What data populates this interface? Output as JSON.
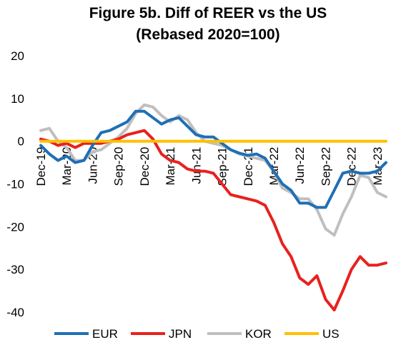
{
  "chart_data": {
    "type": "line",
    "title": "Figure 5b. Diff of REER vs the US",
    "subtitle": "(Rebased 2020=100)",
    "xlabel": "",
    "ylabel": "",
    "ylim": [
      -40,
      20
    ],
    "yticks": [
      20,
      10,
      0,
      -10,
      -20,
      -30,
      -40
    ],
    "grid": false,
    "legend_position": "bottom",
    "x": [
      "Dec-19",
      "Jan-20",
      "Feb-20",
      "Mar-20",
      "Apr-20",
      "May-20",
      "Jun-20",
      "Jul-20",
      "Aug-20",
      "Sep-20",
      "Oct-20",
      "Nov-20",
      "Dec-20",
      "Jan-21",
      "Feb-21",
      "Mar-21",
      "Apr-21",
      "May-21",
      "Jun-21",
      "Jul-21",
      "Aug-21",
      "Sep-21",
      "Oct-21",
      "Nov-21",
      "Dec-21",
      "Jan-22",
      "Feb-22",
      "Mar-22",
      "Apr-22",
      "May-22",
      "Jun-22",
      "Jul-22",
      "Aug-22",
      "Sep-22",
      "Oct-22",
      "Nov-22",
      "Dec-22",
      "Jan-23",
      "Feb-23",
      "Mar-23",
      "Apr-23"
    ],
    "x_tick_labels": [
      "Dec-19",
      "Mar-20",
      "Jun-20",
      "Sep-20",
      "Dec-20",
      "Mar-21",
      "Jun-21",
      "Sep-21",
      "Dec-21",
      "Mar-22",
      "Jun-22",
      "Sep-22",
      "Dec-22",
      "Mar-23"
    ],
    "series": [
      {
        "name": "EUR",
        "color": "#1f6fb5",
        "values": [
          -1.0,
          -3.0,
          -4.5,
          -3.5,
          -5.0,
          -4.5,
          -1.0,
          2.0,
          2.5,
          3.5,
          4.5,
          7.0,
          7.0,
          5.5,
          4.0,
          5.0,
          5.5,
          3.5,
          1.5,
          1.0,
          1.0,
          -0.5,
          -2.0,
          -2.8,
          -3.3,
          -3.0,
          -4.0,
          -7.0,
          -10.0,
          -11.5,
          -14.5,
          -14.5,
          -15.5,
          -15.5,
          -11.5,
          -7.5,
          -7.0,
          -7.5,
          -7.5,
          -7.0,
          -5.0
        ]
      },
      {
        "name": "JPN",
        "color": "#e8211e",
        "values": [
          0.5,
          0.0,
          -1.0,
          -0.5,
          -1.5,
          -0.5,
          -0.5,
          -0.5,
          0.0,
          0.5,
          1.5,
          2.0,
          2.5,
          0.5,
          -3.0,
          -4.5,
          -5.0,
          -6.5,
          -7.0,
          -7.0,
          -7.5,
          -10.0,
          -12.5,
          -13.0,
          -13.5,
          -14.0,
          -15.0,
          -19.0,
          -24.0,
          -27.0,
          -32.0,
          -33.5,
          -31.5,
          -37.0,
          -39.5,
          -35.0,
          -30.0,
          -27.0,
          -29.0,
          -29.0,
          -28.5
        ]
      },
      {
        "name": "KOR",
        "color": "#bfbfbf",
        "values": [
          2.5,
          3.0,
          0.0,
          -1.5,
          -4.5,
          -4.5,
          -2.5,
          -2.0,
          -0.5,
          1.0,
          3.0,
          6.5,
          8.5,
          8.0,
          6.0,
          4.5,
          6.0,
          5.0,
          2.0,
          0.0,
          -0.5,
          -1.0,
          -2.0,
          -3.0,
          -3.5,
          -4.0,
          -4.5,
          -7.0,
          -11.0,
          -12.0,
          -13.5,
          -13.5,
          -16.0,
          -20.5,
          -22.0,
          -17.0,
          -13.0,
          -8.0,
          -8.5,
          -12.0,
          -13.0
        ]
      },
      {
        "name": "US",
        "color": "#ffc000",
        "values": [
          0,
          0,
          0,
          0,
          0,
          0,
          0,
          0,
          0,
          0,
          0,
          0,
          0,
          0,
          0,
          0,
          0,
          0,
          0,
          0,
          0,
          0,
          0,
          0,
          0,
          0,
          0,
          0,
          0,
          0,
          0,
          0,
          0,
          0,
          0,
          0,
          0,
          0,
          0,
          0,
          0
        ]
      }
    ],
    "legend": [
      "EUR",
      "JPN",
      "KOR",
      "US"
    ]
  }
}
